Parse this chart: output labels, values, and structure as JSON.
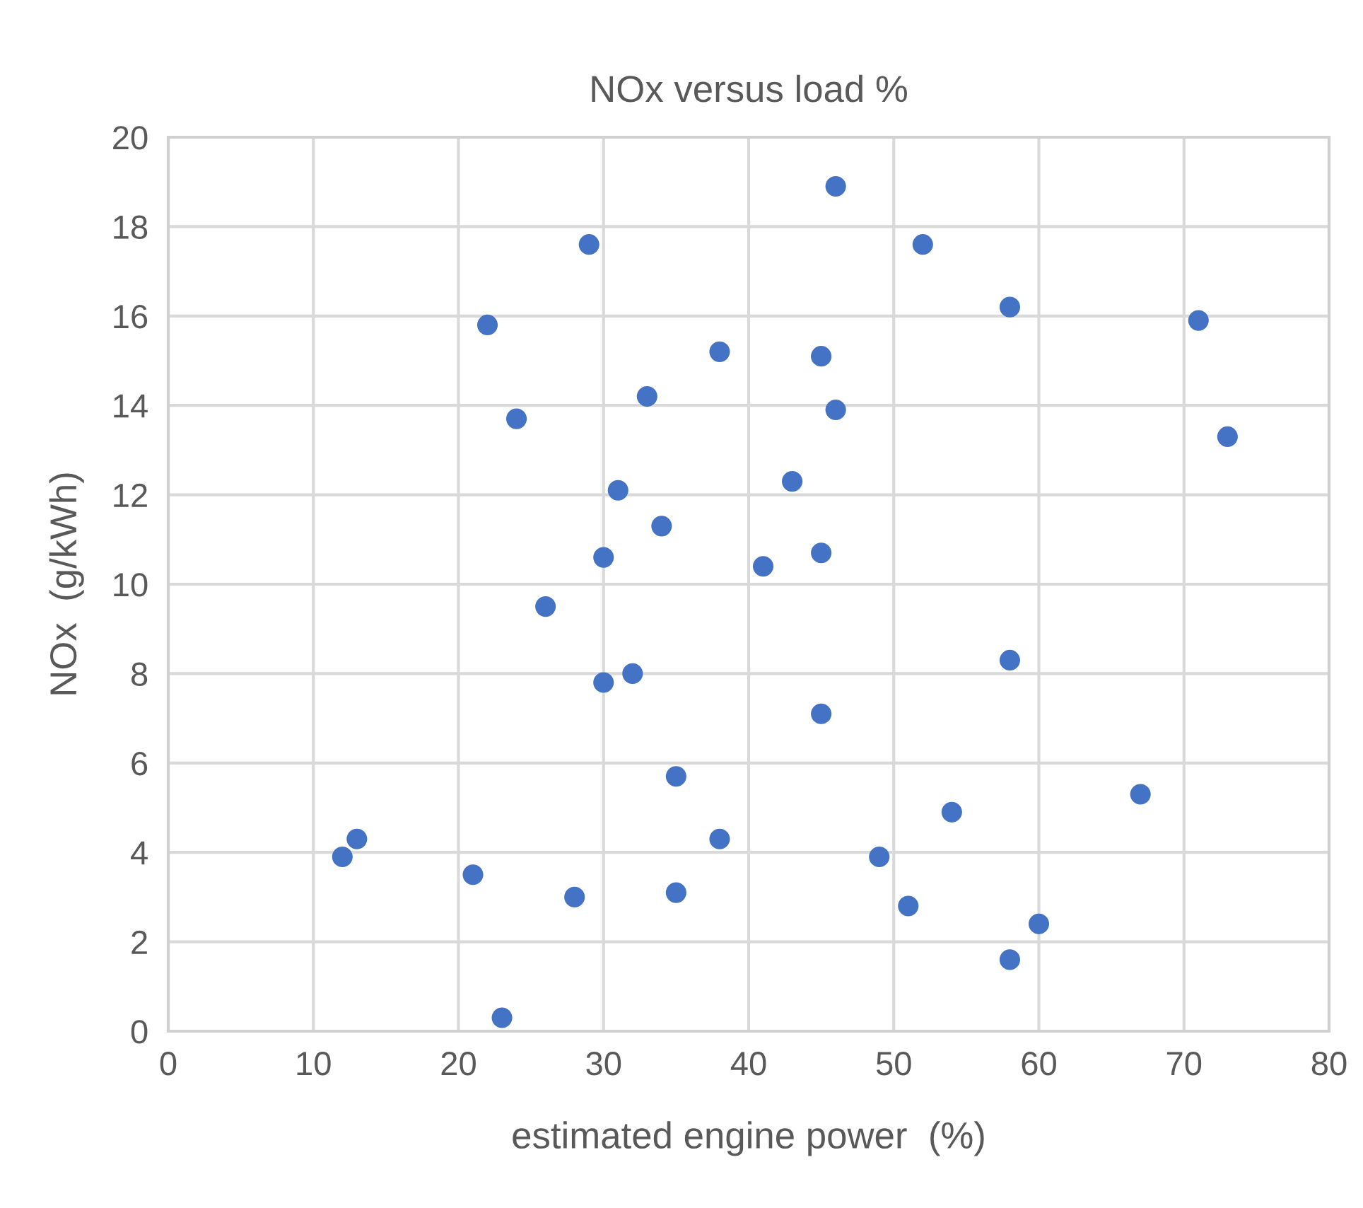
{
  "chart_data": {
    "type": "scatter",
    "title": "NOx versus load %",
    "xlabel": "estimated engine power  (%)",
    "ylabel": "NOx  (g/kWh)",
    "x": [
      29,
      22,
      38,
      33,
      24,
      31,
      34,
      30,
      46,
      52,
      58,
      71,
      45,
      46,
      73,
      43,
      45,
      41,
      26,
      32,
      30,
      35,
      13,
      38,
      12,
      21,
      28,
      35,
      23,
      58,
      45,
      67,
      54,
      49,
      51,
      60,
      58
    ],
    "values": [
      17.6,
      15.8,
      15.2,
      14.2,
      13.7,
      12.1,
      11.3,
      10.6,
      18.9,
      17.6,
      16.2,
      15.9,
      15.1,
      13.9,
      13.3,
      12.3,
      10.7,
      10.4,
      9.5,
      8.0,
      7.8,
      5.7,
      4.3,
      4.3,
      3.9,
      3.5,
      3.0,
      3.1,
      0.3,
      8.3,
      7.1,
      5.3,
      4.9,
      3.9,
      2.8,
      2.4,
      1.6
    ],
    "color": "#4472c4",
    "marker": "circle",
    "xlim": [
      0,
      80
    ],
    "xticks": [
      0,
      10,
      20,
      30,
      40,
      50,
      60,
      70,
      80
    ],
    "ylim": [
      0,
      20
    ],
    "yticks": [
      0,
      2,
      4,
      6,
      8,
      10,
      12,
      14,
      16,
      18,
      20
    ],
    "grid": true
  }
}
